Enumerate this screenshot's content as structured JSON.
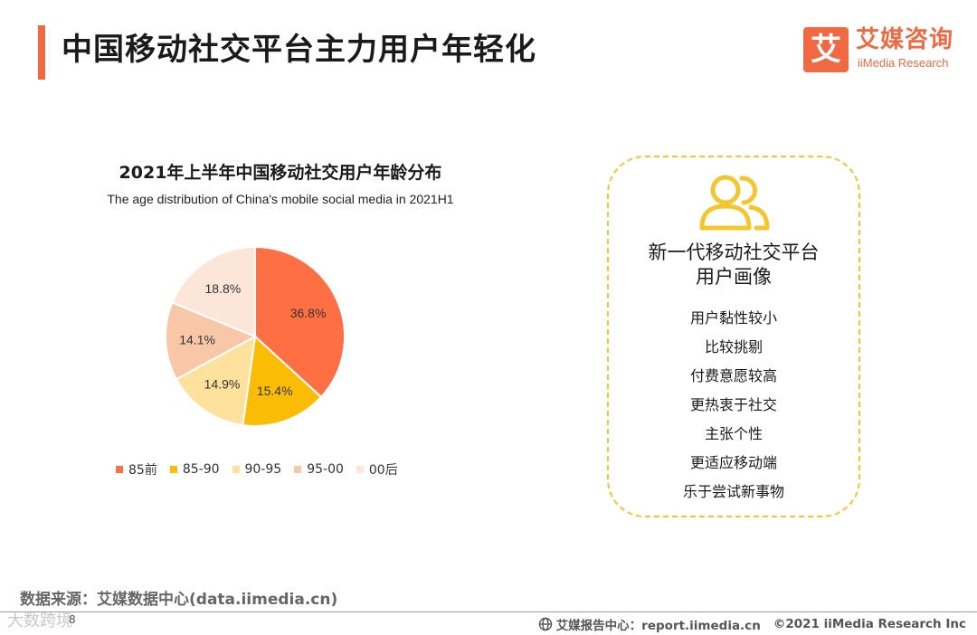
{
  "header": {
    "title": "中国移动社交平台主力用户年轻化",
    "logo_glyph": "艾",
    "logo_cn": "艾媒咨询",
    "logo_en": "iiMedia Research"
  },
  "chart_data": {
    "type": "pie",
    "title": "2021年上半年中国移动社交用户年龄分布",
    "subtitle": "The age distribution of China's mobile social media in 2021H1",
    "unit": "%",
    "slices": [
      {
        "label": "85前",
        "value": 36.8,
        "value_label": "36.8%",
        "color": "#fe7043"
      },
      {
        "label": "85-90",
        "value": 15.4,
        "value_label": "15.4%",
        "color": "#fbbc05"
      },
      {
        "label": "90-95",
        "value": 14.9,
        "value_label": "14.9%",
        "color": "#fde19c"
      },
      {
        "label": "95-00",
        "value": 14.1,
        "value_label": "14.1%",
        "color": "#f7c7a7"
      },
      {
        "label": "00后",
        "value": 18.8,
        "value_label": "18.8%",
        "color": "#fbe6d9"
      }
    ],
    "legend_position": "bottom"
  },
  "persona": {
    "title_line1": "新一代移动社交平台",
    "title_line2": "用户画像",
    "icon": "users-icon",
    "accent_color": "#f3c62d",
    "traits": [
      "用户黏性较小",
      "比较挑剔",
      "付费意愿较高",
      "更热衷于社交",
      "主张个性",
      "更适应移动端",
      "乐于尝试新事物"
    ]
  },
  "footer": {
    "source": "数据来源：艾媒数据中心(data.iimedia.cn)",
    "watermark": "大数跨境",
    "page_number": "8",
    "report": "艾媒报告中心：report.iimedia.cn",
    "copyright": "©2021  iiMedia Research  Inc"
  },
  "colors": {
    "accent": "#ef6a43"
  }
}
